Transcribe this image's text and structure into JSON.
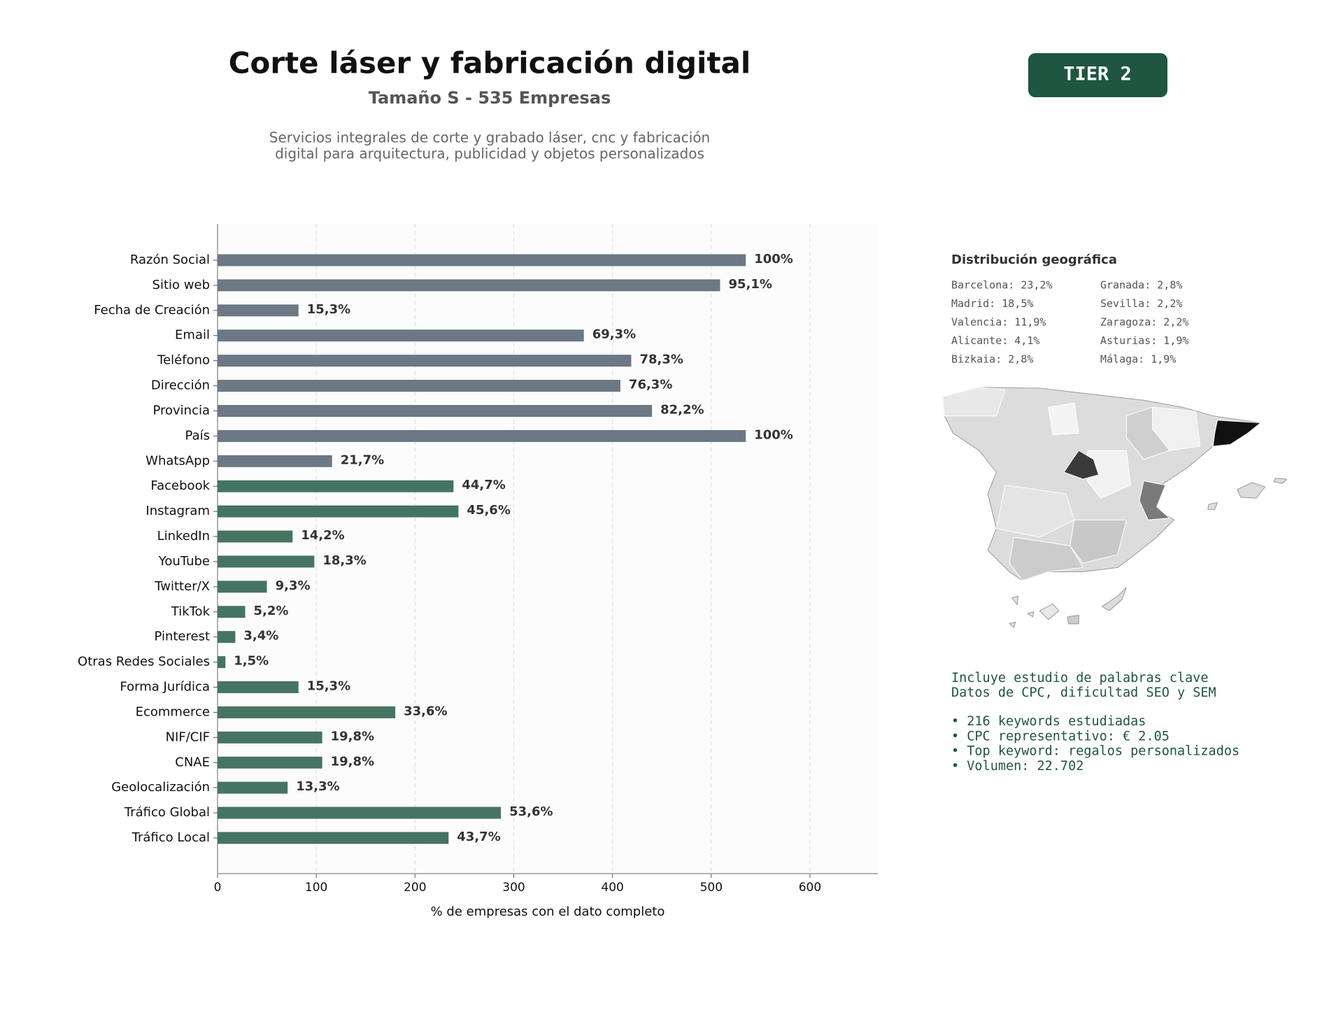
{
  "header": {
    "title": "Corte láser y fabricación digital",
    "subtitle": "Tamaño S - 535 Empresas",
    "description": [
      "Servicios integrales de corte y grabado láser, cnc y fabricación",
      "digital para arquitectura, publicidad y objetos personalizados"
    ],
    "badge": "TIER 2"
  },
  "chart_data": {
    "type": "hbar",
    "categories": [
      "Razón Social",
      "Sitio web",
      "Fecha de Creación",
      "Email",
      "Teléfono",
      "Dirección",
      "Provincia",
      "País",
      "WhatsApp",
      "Facebook",
      "Instagram",
      "LinkedIn",
      "YouTube",
      "Twitter/X",
      "TikTok",
      "Pinterest",
      "Otras Redes Sociales",
      "Forma Jurídica",
      "Ecommerce",
      "NIF/CIF",
      "CNAE",
      "Geolocalización",
      "Tráfico Global",
      "Tráfico Local"
    ],
    "values": [
      535,
      509,
      82,
      371,
      419,
      408,
      440,
      535,
      116,
      239,
      244,
      76,
      98,
      50,
      28,
      18,
      8,
      82,
      180,
      106,
      106,
      71,
      287,
      234
    ],
    "value_labels": [
      "100%",
      "95,1%",
      "15,3%",
      "69,3%",
      "78,3%",
      "76,3%",
      "82,2%",
      "100%",
      "21,7%",
      "44,7%",
      "45,6%",
      "14,2%",
      "18,3%",
      "9,3%",
      "5,2%",
      "3,4%",
      "1,5%",
      "15,3%",
      "33,6%",
      "19,8%",
      "19,8%",
      "13,3%",
      "53,6%",
      "43,7%"
    ],
    "colors": [
      "#6c7883",
      "#6c7883",
      "#6c7883",
      "#6c7883",
      "#6c7883",
      "#6c7883",
      "#6c7883",
      "#6c7883",
      "#6c7883",
      "#467462",
      "#467462",
      "#467462",
      "#467462",
      "#467462",
      "#467462",
      "#467462",
      "#467462",
      "#467462",
      "#467462",
      "#467462",
      "#467462",
      "#467462",
      "#467462",
      "#467462"
    ],
    "xlabel": "% de empresas con el dato completo",
    "xlim": [
      0,
      668.75
    ],
    "xticks": [
      0,
      100,
      200,
      300,
      400,
      500,
      600
    ],
    "grid": true
  },
  "geo": {
    "title": "Distribución geográfica",
    "items": [
      "Barcelona: 23,2%",
      "Madrid: 18,5%",
      "Valencia: 11,9%",
      "Alicante: 4,1%",
      "Bizkaia: 2,8%",
      "Granada: 2,8%",
      "Sevilla: 2,2%",
      "Zaragoza: 2,2%",
      "Asturias: 1,9%",
      "Málaga: 1,9%"
    ]
  },
  "keywords": {
    "intro": [
      "Incluye estudio de palabras clave",
      "Datos de CPC, dificultad SEO y SEM"
    ],
    "bullets": [
      "• 216 keywords estudiadas",
      "• CPC representativo: € 2.05",
      "• Top keyword: regalos personalizados",
      "• Volumen: 22.702"
    ]
  }
}
